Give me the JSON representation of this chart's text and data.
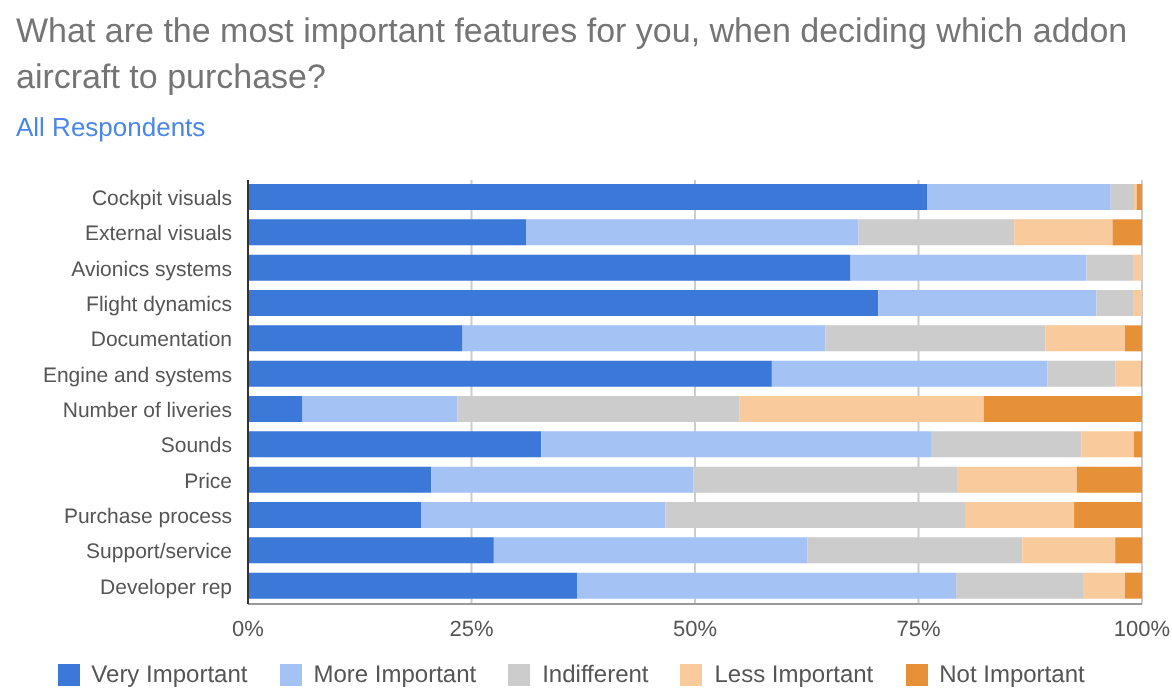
{
  "chart_data": {
    "type": "bar",
    "orientation": "horizontal",
    "stacked": true,
    "title": "What are the most important features for you, when deciding which addon aircraft to purchase?",
    "subtitle": "All Respondents",
    "categories": [
      "Cockpit visuals",
      "External visuals",
      "Avionics systems",
      "Flight dynamics",
      "Documentation",
      "Engine and systems",
      "Number of liveries",
      "Sounds",
      "Price",
      "Purchase process",
      "Support/service",
      "Developer rep"
    ],
    "series": [
      {
        "name": "Very Important",
        "color": "#3c78d8",
        "values": [
          76.0,
          31.1,
          67.4,
          70.5,
          24.0,
          58.6,
          6.1,
          32.8,
          20.5,
          19.4,
          27.5,
          36.8
        ]
      },
      {
        "name": "More Important",
        "color": "#a4c2f4",
        "values": [
          20.5,
          37.2,
          26.4,
          24.4,
          40.6,
          30.8,
          17.3,
          43.6,
          29.3,
          27.3,
          35.1,
          42.4
        ]
      },
      {
        "name": "Indifferent",
        "color": "#cccccc",
        "values": [
          2.6,
          17.4,
          5.2,
          4.1,
          24.6,
          7.6,
          31.6,
          16.8,
          29.6,
          33.6,
          24.0,
          14.2
        ]
      },
      {
        "name": "Less Important",
        "color": "#f9cb9c",
        "values": [
          0.3,
          11.0,
          1.0,
          1.0,
          8.9,
          2.9,
          27.3,
          5.9,
          13.3,
          12.1,
          10.4,
          4.7
        ]
      },
      {
        "name": "Not Important",
        "color": "#e69138",
        "values": [
          0.6,
          3.3,
          0,
          0,
          1.9,
          0.1,
          17.7,
          0.9,
          7.3,
          7.6,
          3.0,
          1.9
        ]
      }
    ],
    "xlim": [
      0,
      100
    ],
    "xticks": [
      {
        "value": 0,
        "label": "0%"
      },
      {
        "value": 25,
        "label": "25%"
      },
      {
        "value": 50,
        "label": "50%"
      },
      {
        "value": 75,
        "label": "75%"
      },
      {
        "value": 100,
        "label": "100%"
      }
    ],
    "grid": "x",
    "legend": "bottom"
  }
}
